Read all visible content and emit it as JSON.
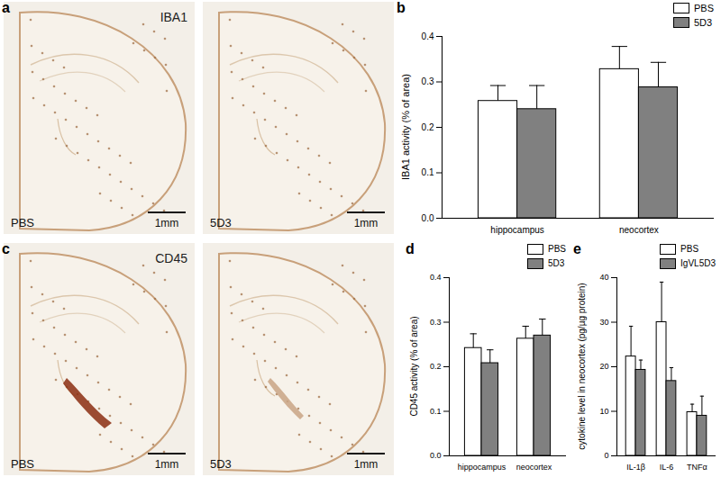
{
  "images": [
    {
      "panel": "a",
      "stain": "IBA1",
      "sections": [
        {
          "label": "PBS",
          "scale_bar": "1mm"
        },
        {
          "label": "5D3",
          "scale_bar": "1mm"
        }
      ]
    },
    {
      "panel": "c",
      "stain": "CD45",
      "sections": [
        {
          "label": "PBS",
          "scale_bar": "1mm"
        },
        {
          "label": "5D3",
          "scale_bar": "1mm"
        }
      ]
    }
  ],
  "chart_data": [
    {
      "type": "bar",
      "title": "b",
      "y_label": "IBA1 activity (% of area)",
      "categories": [
        "hippocampus",
        "neocortex"
      ],
      "series": [
        {
          "name": "PBS",
          "color": "#ffffff",
          "values": [
            0.258,
            0.328
          ],
          "errors": [
            0.034,
            0.05
          ]
        },
        {
          "name": "5D3",
          "color": "#808080",
          "values": [
            0.24,
            0.288
          ],
          "errors": [
            0.052,
            0.055
          ]
        }
      ],
      "ylim": [
        0,
        0.4
      ],
      "yticks": [
        {
          "value": 0,
          "label": "0.0"
        },
        {
          "value": 0.1,
          "label": "0.1"
        },
        {
          "value": 0.2,
          "label": "0.2"
        },
        {
          "value": 0.3,
          "label": "0.3"
        },
        {
          "value": 0.4,
          "label": "0.4"
        }
      ],
      "grid": false,
      "legend": "top-right"
    },
    {
      "type": "bar",
      "title": "d",
      "y_label": "CD45 activity (% of area)",
      "categories": [
        "hippocampus",
        "neocortex"
      ],
      "series": [
        {
          "name": "PBS",
          "color": "#ffffff",
          "values": [
            0.242,
            0.263
          ],
          "errors": [
            0.032,
            0.028
          ]
        },
        {
          "name": "5D3",
          "color": "#808080",
          "values": [
            0.208,
            0.27
          ],
          "errors": [
            0.03,
            0.037
          ]
        }
      ],
      "ylim": [
        0,
        0.4
      ],
      "yticks": [
        {
          "value": 0,
          "label": "0.0"
        },
        {
          "value": 0.1,
          "label": "0.1"
        },
        {
          "value": 0.2,
          "label": "0.2"
        },
        {
          "value": 0.3,
          "label": "0.3"
        },
        {
          "value": 0.4,
          "label": "0.4"
        }
      ],
      "grid": false,
      "legend": "top-right"
    },
    {
      "type": "bar",
      "title": "e",
      "y_label": "cytokine level in neocortex (pg/µg protein)",
      "categories": [
        "IL-1β",
        "IL-6",
        "TNFα"
      ],
      "series": [
        {
          "name": "PBS",
          "color": "#ffffff",
          "values": [
            22.3,
            30.0,
            9.8
          ],
          "errors": [
            6.8,
            9.0,
            1.8
          ]
        },
        {
          "name": "IgVL5D3",
          "color": "#808080",
          "values": [
            19.3,
            16.8,
            9.0
          ],
          "errors": [
            2.2,
            3.0,
            4.4
          ]
        }
      ],
      "ylim": [
        0,
        40
      ],
      "yticks": [
        0,
        10,
        20,
        30,
        40
      ],
      "grid": false,
      "legend": "top-right"
    }
  ]
}
